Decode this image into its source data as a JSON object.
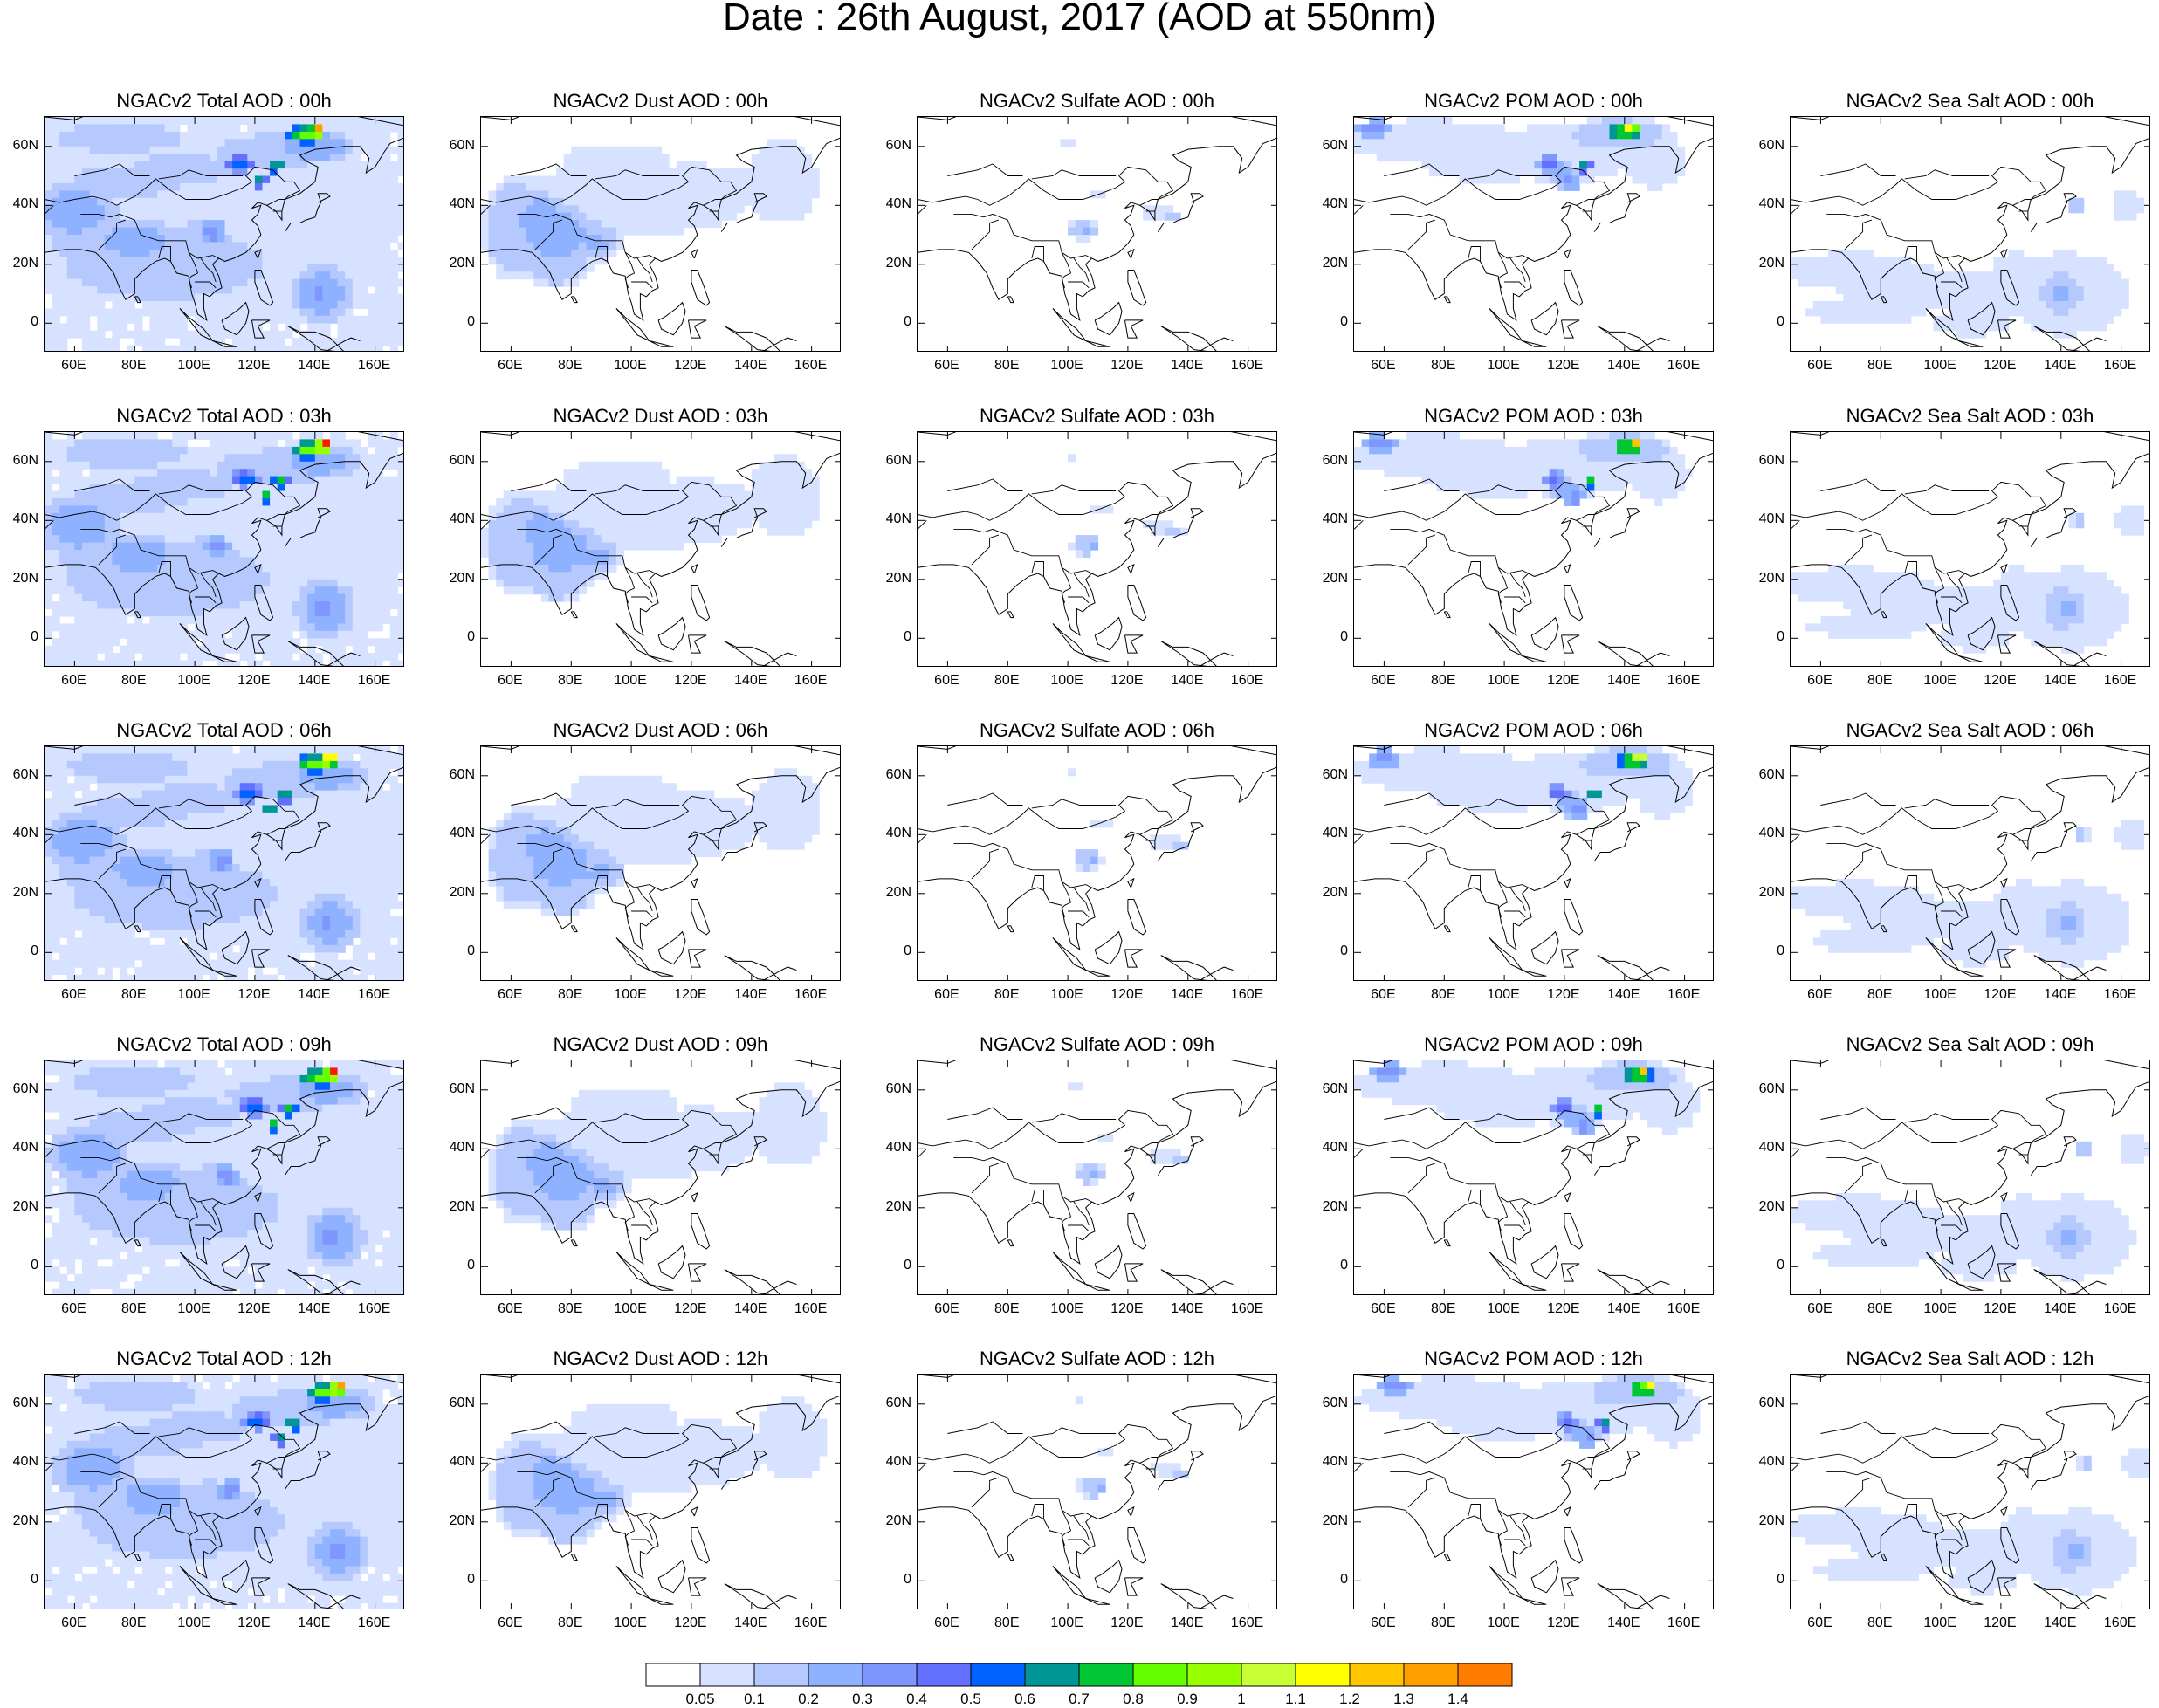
{
  "title": "Date : 26th August, 2017 (AOD at 550nm)",
  "colorbar": {
    "ticks": [
      "0.05",
      "0.1",
      "0.2",
      "0.3",
      "0.4",
      "0.5",
      "0.6",
      "0.7",
      "0.8",
      "0.9",
      "1",
      "1.1",
      "1.2",
      "1.3",
      "1.4"
    ],
    "colors": [
      "#ffffff",
      "#d6e2ff",
      "#b5c9ff",
      "#8eb2ff",
      "#7f96ff",
      "#6370ff",
      "#0063ff",
      "#009696",
      "#00c633",
      "#63ff00",
      "#96ff00",
      "#c6ff33",
      "#ffff00",
      "#ffc600",
      "#ffa000",
      "#ff7c00",
      "#ff1900"
    ]
  },
  "axes": {
    "lon_ticks": [
      "60E",
      "80E",
      "100E",
      "120E",
      "140E",
      "160E"
    ],
    "lat_ticks": [
      "60N",
      "40N",
      "20N",
      "0"
    ]
  },
  "panels": [
    [
      "NGACv2 Total AOD : 00h",
      "NGACv2 Dust AOD : 00h",
      "NGACv2 Sulfate AOD : 00h",
      "NGACv2 POM AOD : 00h",
      "NGACv2 Sea Salt AOD : 00h"
    ],
    [
      "NGACv2 Total AOD : 03h",
      "NGACv2 Dust AOD : 03h",
      "NGACv2 Sulfate AOD : 03h",
      "NGACv2 POM AOD : 03h",
      "NGACv2 Sea Salt AOD : 03h"
    ],
    [
      "NGACv2 Total AOD : 06h",
      "NGACv2 Dust AOD : 06h",
      "NGACv2 Sulfate AOD : 06h",
      "NGACv2 POM AOD : 06h",
      "NGACv2 Sea Salt AOD : 06h"
    ],
    [
      "NGACv2 Total AOD : 09h",
      "NGACv2 Dust AOD : 09h",
      "NGACv2 Sulfate AOD : 09h",
      "NGACv2 POM AOD : 09h",
      "NGACv2 Sea Salt  AOD : 09h"
    ],
    [
      "NGACv2 Total AOD  : 12h",
      "NGACv2 Dust AOD : 12h",
      "NGACv2 Sulfate AOD : 12h",
      "NGACv2 POM  AOD : 12h",
      "NGACv2 Sea Salt  AOD : 12h"
    ]
  ]
}
